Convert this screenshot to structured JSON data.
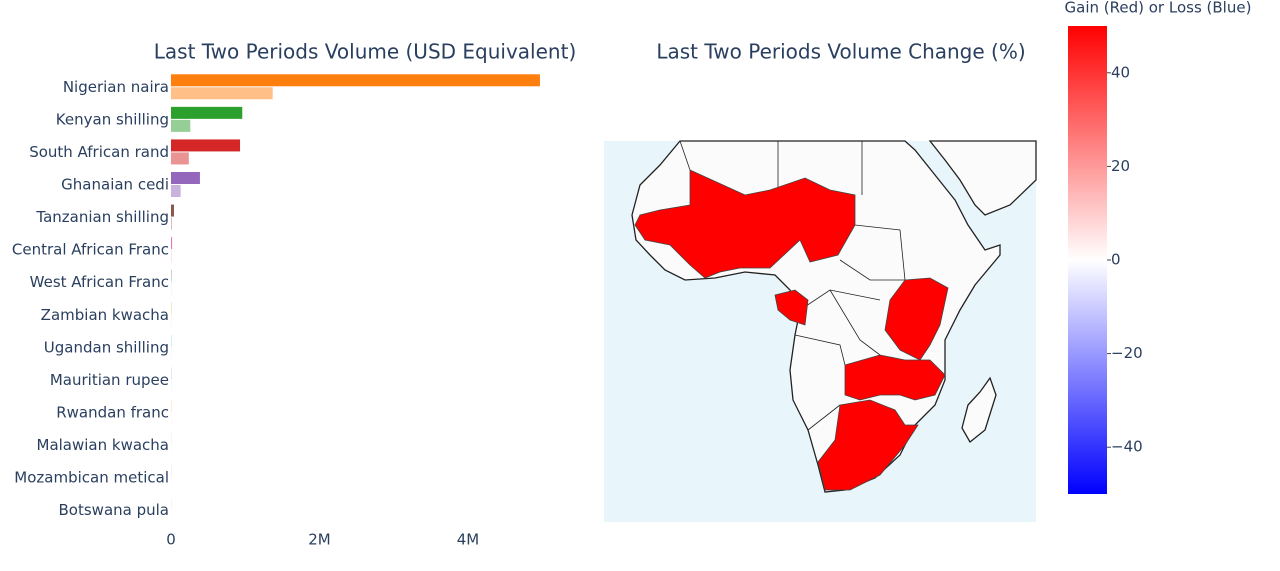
{
  "chart_data": [
    {
      "type": "bar",
      "orientation": "h",
      "title": "Last Two Periods Volume (USD Equivalent)",
      "categories": [
        "Nigerian naira",
        "Kenyan shilling",
        "South African rand",
        "Ghanaian cedi",
        "Tanzanian shilling",
        "Central African Franc",
        "West African Franc",
        "Zambian kwacha",
        "Ugandan shilling",
        "Mauritian rupee",
        "Rwandan franc",
        "Malawian kwacha",
        "Mozambican metical",
        "Botswana pula"
      ],
      "colors": [
        "#ff7f0e",
        "#2ca02c",
        "#d62728",
        "#9467bd",
        "#8c564b",
        "#e377c2",
        "#7f7f7f",
        "#bcbd22",
        "#17becf",
        "#1f77b4",
        "#ff7f0e",
        "#2ca02c",
        "#d62728",
        "#9467bd"
      ],
      "series": [
        {
          "opacity": 1,
          "values": [
            4970000,
            960000,
            930000,
            390000,
            40000,
            15000,
            5000,
            4000,
            3000,
            2000,
            2000,
            1000,
            1000,
            1000
          ]
        },
        {
          "opacity": 0.5,
          "values": [
            1370000,
            260000,
            240000,
            130000,
            10000,
            5000,
            2000,
            2000,
            1000,
            1000,
            1000,
            500,
            500,
            500
          ]
        }
      ],
      "xlim": [
        0,
        5240000
      ],
      "xticks": [
        0,
        {
          "value": 2000000,
          "label": "2M"
        },
        {
          "value": 4000000,
          "label": "4M"
        }
      ]
    },
    {
      "type": "choropleth",
      "title": "Last Two Periods Volume Change (%)",
      "values": [
        50,
        50,
        50,
        50,
        50
      ],
      "colorscale": [
        "#0000ff",
        "#ffffff",
        "#ff0000"
      ],
      "zlim": [
        -50,
        50
      ],
      "colorbar_title": "Gain (Red) or Loss (Blue)",
      "zticks": [
        40,
        20,
        0,
        {
          "value": -20,
          "label": "−20"
        },
        {
          "value": -40,
          "label": "−40"
        }
      ]
    }
  ]
}
